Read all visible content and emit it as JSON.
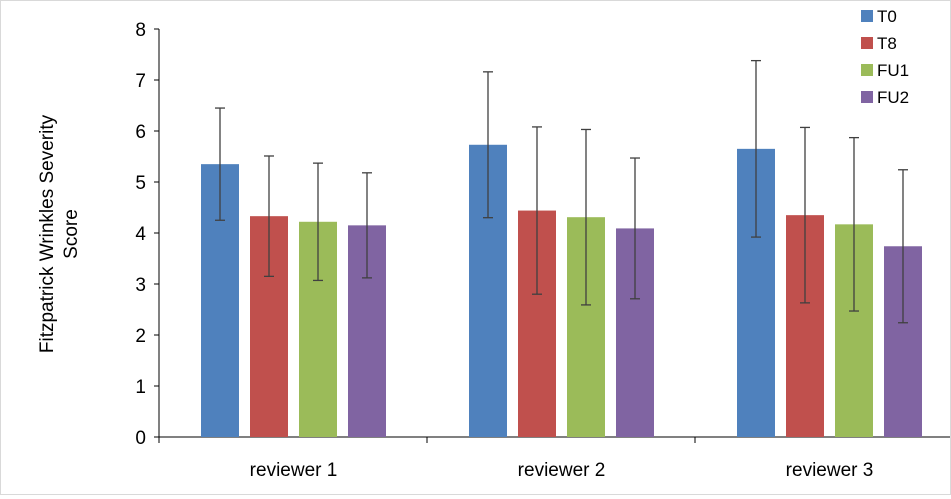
{
  "chart_data": {
    "type": "bar",
    "title": "",
    "xlabel": "",
    "ylabel": "Fitzpatrick Wrinkles Severity Score",
    "ylabel_lines": [
      "Fitzpatrick Wrinkles Severity",
      "Score"
    ],
    "ylim": [
      0,
      8
    ],
    "yticks": [
      "0",
      "1",
      "2",
      "3",
      "4",
      "5",
      "6",
      "7",
      "8"
    ],
    "grid": false,
    "legend_position": "top-right",
    "categories": [
      "reviewer 1",
      "reviewer 2",
      "reviewer 3"
    ],
    "series": [
      {
        "name": "T0",
        "color": "#4f81bd",
        "values": [
          5.35,
          5.73,
          5.65
        ],
        "errors": [
          1.1,
          1.43,
          1.73
        ]
      },
      {
        "name": "T8",
        "color": "#c0504d",
        "values": [
          4.33,
          4.44,
          4.35
        ],
        "errors": [
          1.18,
          1.64,
          1.72
        ]
      },
      {
        "name": "FU1",
        "color": "#9bbb59",
        "values": [
          4.22,
          4.31,
          4.17
        ],
        "errors": [
          1.15,
          1.72,
          1.7
        ]
      },
      {
        "name": "FU2",
        "color": "#8064a2",
        "values": [
          4.15,
          4.09,
          3.74
        ],
        "errors": [
          1.03,
          1.38,
          1.5
        ]
      }
    ]
  }
}
